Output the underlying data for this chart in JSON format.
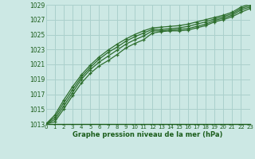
{
  "xlabel": "Graphe pression niveau de la mer (hPa)",
  "bg_color": "#cce8e4",
  "grid_color": "#aad0cc",
  "line_color": "#2d6e2d",
  "text_color": "#1a5c1a",
  "xlim": [
    0,
    23
  ],
  "ylim": [
    1013,
    1029
  ],
  "yticks": [
    1013,
    1015,
    1017,
    1019,
    1021,
    1023,
    1025,
    1027,
    1029
  ],
  "xticks": [
    0,
    1,
    2,
    3,
    4,
    5,
    6,
    7,
    8,
    9,
    10,
    11,
    12,
    13,
    14,
    15,
    16,
    17,
    18,
    19,
    20,
    21,
    22,
    23
  ],
  "series": [
    [
      1013.0,
      1013.3,
      1015.0,
      1016.8,
      1018.5,
      1019.8,
      1020.8,
      1021.5,
      1022.3,
      1023.2,
      1023.8,
      1024.3,
      1025.2,
      1025.4,
      1025.5,
      1025.5,
      1025.6,
      1025.9,
      1026.2,
      1026.7,
      1027.0,
      1027.4,
      1028.0,
      1028.5
    ],
    [
      1013.0,
      1013.6,
      1015.4,
      1017.2,
      1019.0,
      1020.3,
      1021.3,
      1022.1,
      1022.9,
      1023.7,
      1024.3,
      1024.8,
      1025.5,
      1025.5,
      1025.6,
      1025.7,
      1025.8,
      1026.1,
      1026.4,
      1026.9,
      1027.2,
      1027.6,
      1028.3,
      1028.7
    ],
    [
      1013.0,
      1013.9,
      1015.8,
      1017.6,
      1019.3,
      1020.6,
      1021.7,
      1022.6,
      1023.3,
      1024.1,
      1024.7,
      1025.2,
      1025.7,
      1025.7,
      1025.8,
      1025.9,
      1026.1,
      1026.4,
      1026.7,
      1027.1,
      1027.4,
      1027.8,
      1028.5,
      1028.9
    ],
    [
      1013.0,
      1014.2,
      1016.2,
      1018.0,
      1019.6,
      1020.9,
      1022.0,
      1022.9,
      1023.7,
      1024.4,
      1025.0,
      1025.5,
      1025.9,
      1026.0,
      1026.1,
      1026.2,
      1026.4,
      1026.7,
      1027.0,
      1027.3,
      1027.6,
      1028.0,
      1028.7,
      1029.1
    ]
  ]
}
